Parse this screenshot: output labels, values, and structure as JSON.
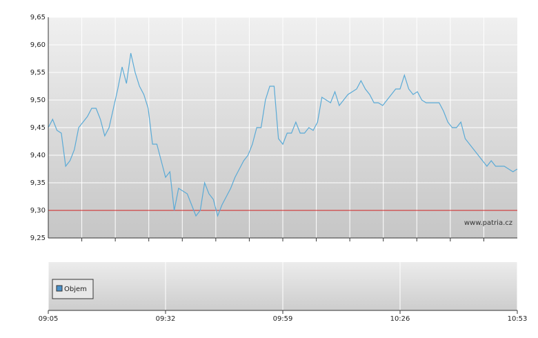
{
  "chart_data": {
    "type": "line",
    "x": [
      "09:05",
      "09:06",
      "09:07",
      "09:08",
      "09:09",
      "09:10",
      "09:11",
      "09:12",
      "09:13",
      "09:14",
      "09:15",
      "09:16",
      "09:17",
      "09:18",
      "09:19",
      "09:20",
      "09:21",
      "09:22",
      "09:23",
      "09:24",
      "09:25",
      "09:26",
      "09:27",
      "09:28",
      "09:29",
      "09:30",
      "09:31",
      "09:32",
      "09:33",
      "09:34",
      "09:35",
      "09:36",
      "09:37",
      "09:38",
      "09:39",
      "09:40",
      "09:41",
      "09:42",
      "09:43",
      "09:44",
      "09:45",
      "09:46",
      "09:47",
      "09:48",
      "09:49",
      "09:50",
      "09:51",
      "09:52",
      "09:53",
      "09:54",
      "09:55",
      "09:56",
      "09:57",
      "09:58",
      "09:59",
      "10:00",
      "10:01",
      "10:02",
      "10:03",
      "10:04",
      "10:05",
      "10:06",
      "10:07",
      "10:08",
      "10:09",
      "10:10",
      "10:11",
      "10:12",
      "10:13",
      "10:14",
      "10:15",
      "10:16",
      "10:17",
      "10:18",
      "10:19",
      "10:20",
      "10:21",
      "10:22",
      "10:23",
      "10:24",
      "10:25",
      "10:26",
      "10:27",
      "10:28",
      "10:29",
      "10:30",
      "10:31",
      "10:32",
      "10:33",
      "10:34",
      "10:35",
      "10:36",
      "10:37",
      "10:38",
      "10:39",
      "10:40",
      "10:41",
      "10:42",
      "10:43",
      "10:44",
      "10:45",
      "10:46",
      "10:47",
      "10:48",
      "10:49",
      "10:50",
      "10:51",
      "10:52",
      "10:53"
    ],
    "series": [
      {
        "color": "#5aaad6",
        "values": [
          9.45,
          9.465,
          9.445,
          9.44,
          9.38,
          9.39,
          9.41,
          9.45,
          9.46,
          9.47,
          9.485,
          9.485,
          9.465,
          9.435,
          9.45,
          9.485,
          9.52,
          9.56,
          9.53,
          9.585,
          9.55,
          9.525,
          9.51,
          9.485,
          9.42,
          9.42,
          9.39,
          9.36,
          9.37,
          9.3,
          9.34,
          9.335,
          9.33,
          9.31,
          9.29,
          9.3,
          9.35,
          9.33,
          9.32,
          9.29,
          9.31,
          9.325,
          9.34,
          9.36,
          9.375,
          9.39,
          9.4,
          9.42,
          9.45,
          9.45,
          9.5,
          9.525,
          9.525,
          9.43,
          9.42,
          9.44,
          9.44,
          9.46,
          9.44,
          9.44,
          9.45,
          9.445,
          9.46,
          9.505,
          9.5,
          9.495,
          9.515,
          9.49,
          9.5,
          9.51,
          9.515,
          9.52,
          9.535,
          9.52,
          9.51,
          9.495,
          9.495,
          9.49,
          9.5,
          9.51,
          9.52,
          9.52,
          9.545,
          9.52,
          9.51,
          9.515,
          9.5,
          9.495,
          9.495,
          9.495,
          9.495,
          9.48,
          9.46,
          9.45,
          9.45,
          9.46,
          9.43,
          9.42,
          9.41,
          9.4,
          9.39,
          9.38,
          9.39,
          9.38,
          9.38,
          9.38,
          9.375,
          9.37,
          9.375
        ]
      }
    ],
    "xlim": [
      "09:05",
      "10:53"
    ],
    "xticks": [
      "09:05",
      "09:32",
      "09:59",
      "10:26",
      "10:53"
    ],
    "ylim": [
      9.25,
      9.65
    ],
    "yticks": [
      {
        "value": 9.25,
        "label": "9,25"
      },
      {
        "value": 9.3,
        "label": "9,30"
      },
      {
        "value": 9.35,
        "label": "9,35"
      },
      {
        "value": 9.4,
        "label": "9,40"
      },
      {
        "value": 9.45,
        "label": "9,45"
      },
      {
        "value": 9.5,
        "label": "9,50"
      },
      {
        "value": 9.55,
        "label": "9,55"
      },
      {
        "value": 9.6,
        "label": "9,60"
      },
      {
        "value": 9.65,
        "label": "9,65"
      }
    ],
    "reference_line": {
      "value": 9.3,
      "color": "#d02020"
    },
    "grid": true,
    "watermark": "www.patria.cz",
    "volume_legend": "Objem",
    "volume_color": "#4a90c8"
  }
}
